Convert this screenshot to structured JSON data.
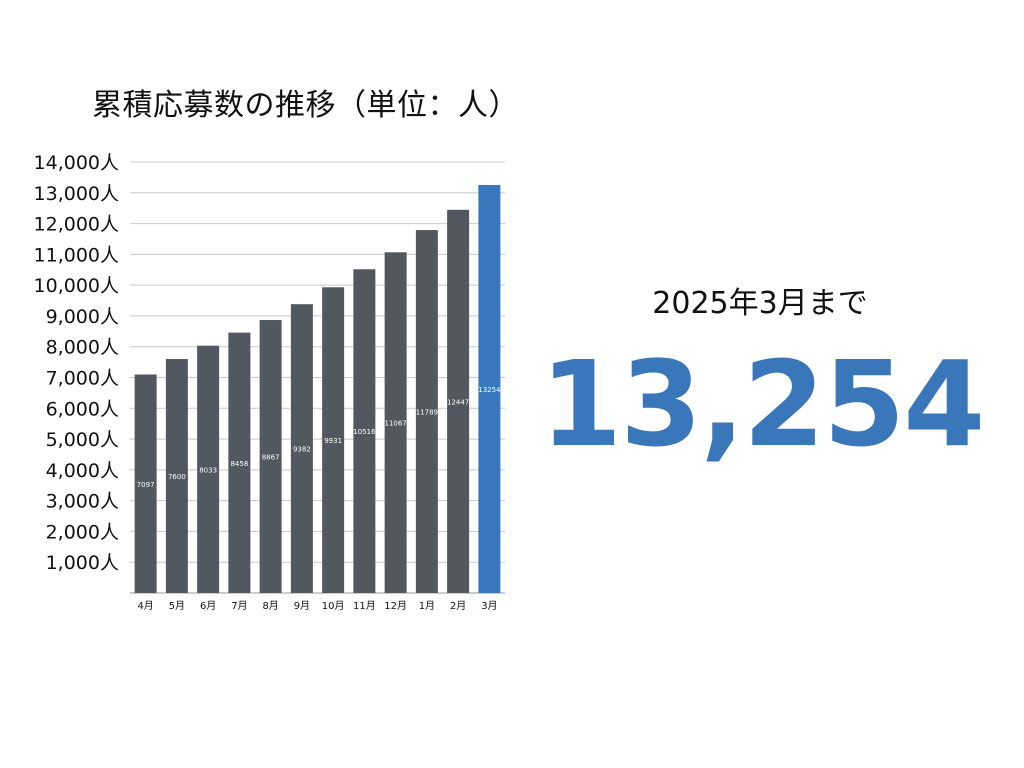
{
  "chart_data": {
    "type": "bar",
    "title": "累積応募数の推移（単位：人）",
    "categories": [
      "4月",
      "5月",
      "6月",
      "7月",
      "8月",
      "9月",
      "10月",
      "11月",
      "12月",
      "1月",
      "2月",
      "3月"
    ],
    "values": [
      7097,
      7600,
      8033,
      8458,
      8867,
      9382,
      9931,
      10516,
      11067,
      11789,
      12447,
      13254
    ],
    "value_labels": [
      "7097",
      "7600",
      "8033",
      "8458",
      "8867",
      "9382",
      "9931",
      "10516",
      "11067",
      "11789",
      "12447",
      "13254"
    ],
    "ylim": [
      0,
      14000
    ],
    "yticks": [
      1000,
      2000,
      3000,
      4000,
      5000,
      6000,
      7000,
      8000,
      9000,
      10000,
      11000,
      12000,
      13000,
      14000
    ],
    "ytick_labels": [
      "1,000人",
      "2,000人",
      "3,000人",
      "4,000人",
      "5,000人",
      "6,000人",
      "7,000人",
      "8,000人",
      "9,000人",
      "10,000人",
      "11,000人",
      "12,000人",
      "13,000人",
      "14,000人"
    ],
    "grid": true,
    "bar_color": "#53575f",
    "highlight_color": "#3a76ba",
    "highlight_index": 11
  },
  "side": {
    "caption": "2025年3月まで",
    "total": "13,254",
    "total_color": "#3a76ba"
  }
}
